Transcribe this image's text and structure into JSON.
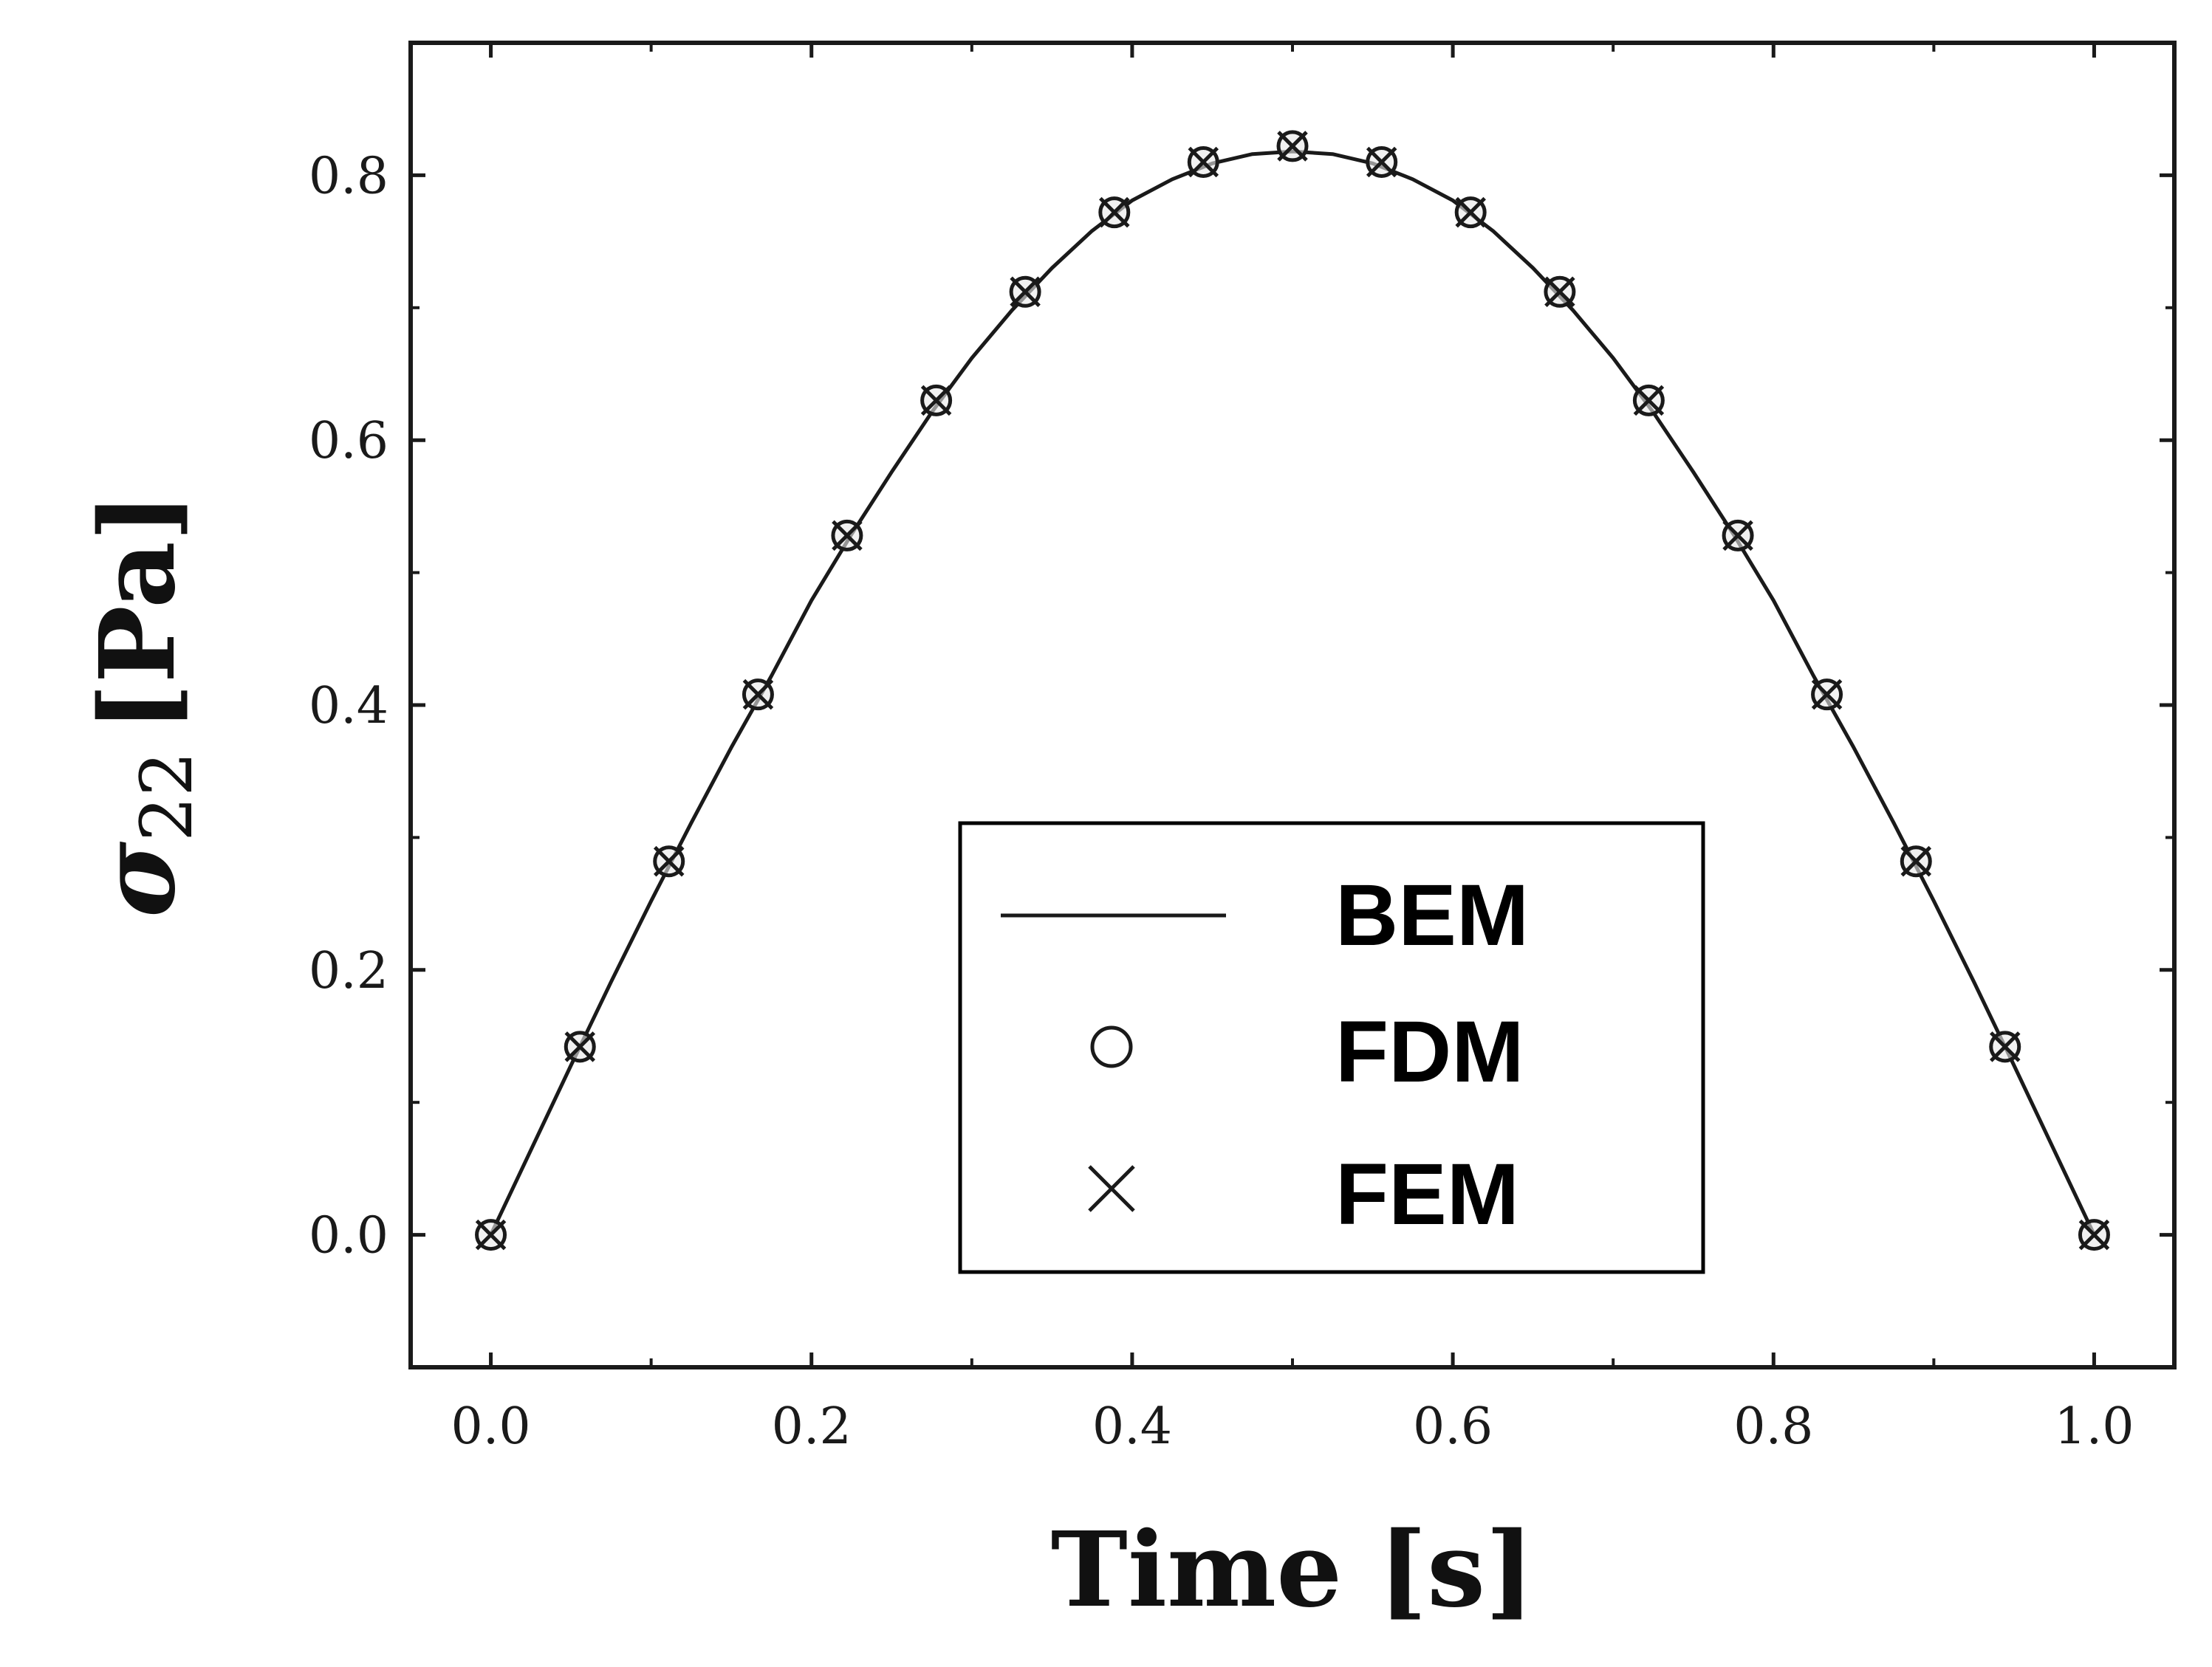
{
  "chart_data": {
    "type": "line",
    "xlabel": "Time [s]",
    "ylabel_symbol": "σ",
    "ylabel_subscript": "22",
    "ylabel_unit": "[Pa]",
    "xlim": [
      -0.05,
      1.05
    ],
    "ylim": [
      -0.1,
      0.9
    ],
    "x_ticks": [
      "0.0",
      "0.2",
      "0.4",
      "0.6",
      "0.8",
      "1.0"
    ],
    "x_tick_values": [
      0.0,
      0.2,
      0.4,
      0.6,
      0.8,
      1.0
    ],
    "y_ticks": [
      "0.0",
      "0.2",
      "0.4",
      "0.6",
      "0.8"
    ],
    "y_tick_values": [
      0.0,
      0.2,
      0.4,
      0.6,
      0.8
    ],
    "grid": false,
    "legend_position": "bottom-center",
    "series": [
      {
        "name": "BEM",
        "style": "line",
        "color": "#1a1a1a",
        "x": [
          0.0,
          0.025,
          0.05,
          0.075,
          0.1,
          0.125,
          0.15,
          0.175,
          0.2,
          0.225,
          0.25,
          0.275,
          0.3,
          0.325,
          0.35,
          0.375,
          0.4,
          0.425,
          0.45,
          0.475,
          0.5,
          0.525,
          0.55,
          0.575,
          0.6,
          0.625,
          0.65,
          0.675,
          0.7,
          0.725,
          0.75,
          0.775,
          0.8,
          0.825,
          0.85,
          0.875,
          0.9,
          0.925,
          0.95,
          0.975,
          1.0
        ],
        "y": [
          0.0,
          0.064,
          0.128,
          0.191,
          0.252,
          0.311,
          0.368,
          0.422,
          0.479,
          0.529,
          0.576,
          0.621,
          0.662,
          0.698,
          0.73,
          0.758,
          0.781,
          0.797,
          0.809,
          0.816,
          0.818,
          0.816,
          0.809,
          0.797,
          0.781,
          0.758,
          0.73,
          0.698,
          0.662,
          0.621,
          0.576,
          0.529,
          0.479,
          0.422,
          0.368,
          0.311,
          0.252,
          0.191,
          0.128,
          0.064,
          0.0
        ]
      },
      {
        "name": "FDM",
        "style": "circle",
        "color": "#1a1a1a",
        "x": [
          0.0,
          0.0556,
          0.1111,
          0.1667,
          0.2222,
          0.2778,
          0.3333,
          0.3889,
          0.4444,
          0.5,
          0.5556,
          0.6111,
          0.6667,
          0.7222,
          0.7778,
          0.8333,
          0.8889,
          0.9444,
          1.0
        ],
        "y": [
          0.0,
          0.142,
          0.282,
          0.408,
          0.528,
          0.63,
          0.712,
          0.772,
          0.81,
          0.822,
          0.81,
          0.772,
          0.712,
          0.63,
          0.528,
          0.408,
          0.282,
          0.142,
          0.0
        ]
      },
      {
        "name": "FEM",
        "style": "cross",
        "color": "#1a1a1a",
        "x": [
          0.0,
          0.0556,
          0.1111,
          0.1667,
          0.2222,
          0.2778,
          0.3333,
          0.3889,
          0.4444,
          0.5,
          0.5556,
          0.6111,
          0.6667,
          0.7222,
          0.7778,
          0.8333,
          0.8889,
          0.9444,
          1.0
        ],
        "y": [
          0.0,
          0.142,
          0.282,
          0.408,
          0.528,
          0.63,
          0.712,
          0.772,
          0.81,
          0.822,
          0.81,
          0.772,
          0.712,
          0.63,
          0.528,
          0.408,
          0.282,
          0.142,
          0.0
        ]
      }
    ]
  }
}
